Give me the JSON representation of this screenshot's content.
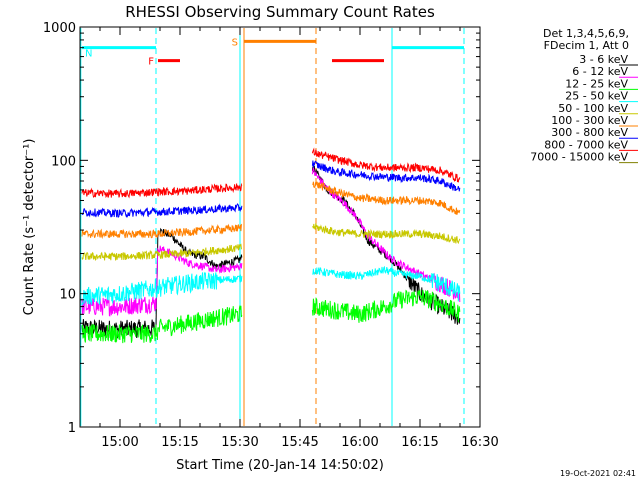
{
  "chart_data": {
    "type": "line",
    "title": "RHESSI Observing Summary Count Rates",
    "xlabel": "Start Time (20-Jan-14 14:50:02)",
    "ylabel": "Count Rate (s⁻¹ detector⁻¹)",
    "yscale": "log",
    "xlim_minutes": [
      0,
      100
    ],
    "ylim": [
      1,
      1000
    ],
    "x_ticks": [
      {
        "label": "15:00",
        "minute": 10
      },
      {
        "label": "15:15",
        "minute": 25
      },
      {
        "label": "15:30",
        "minute": 40
      },
      {
        "label": "15:45",
        "minute": 55
      },
      {
        "label": "16:00",
        "minute": 70
      },
      {
        "label": "16:15",
        "minute": 85
      },
      {
        "label": "16:30",
        "minute": 100
      }
    ],
    "y_ticks": [
      {
        "label": "1",
        "value": 1
      },
      {
        "label": "10",
        "value": 10
      },
      {
        "label": "100",
        "value": 100
      },
      {
        "label": "1000",
        "value": 1000
      }
    ],
    "legend_header": [
      "Det 1,3,4,5,6,9,",
      "FDecim 1, Att 0"
    ],
    "legend_position": "right",
    "gaps_minutes": [
      [
        40.5,
        58
      ]
    ],
    "series": [
      {
        "name": "3 - 6 keV",
        "color": "#000000",
        "points": [
          [
            0.5,
            5.5
          ],
          [
            10,
            5.4
          ],
          [
            19,
            5.5
          ],
          [
            19.5,
            30
          ],
          [
            23,
            27
          ],
          [
            27,
            20
          ],
          [
            31,
            19
          ],
          [
            34,
            16
          ],
          [
            40,
            18
          ],
          [
            58,
            90
          ],
          [
            62,
            60
          ],
          [
            66,
            50
          ],
          [
            69,
            38
          ],
          [
            72,
            25
          ],
          [
            78,
            18
          ],
          [
            85,
            10
          ],
          [
            90,
            8
          ],
          [
            95,
            6.5
          ]
        ]
      },
      {
        "name": "6 - 12 keV",
        "color": "#ff00ff",
        "points": [
          [
            0.5,
            8
          ],
          [
            10,
            8
          ],
          [
            19,
            8.5
          ],
          [
            19.5,
            22
          ],
          [
            23,
            20
          ],
          [
            27,
            17
          ],
          [
            31,
            16
          ],
          [
            34,
            15
          ],
          [
            40,
            16
          ],
          [
            58,
            85
          ],
          [
            62,
            60
          ],
          [
            66,
            48
          ],
          [
            69,
            38
          ],
          [
            72,
            27
          ],
          [
            78,
            18
          ],
          [
            85,
            14
          ],
          [
            90,
            12
          ],
          [
            95,
            10
          ]
        ]
      },
      {
        "name": "12 - 25 keV",
        "color": "#00ff00",
        "points": [
          [
            0.5,
            5
          ],
          [
            10,
            5
          ],
          [
            19,
            5
          ],
          [
            20,
            5.5
          ],
          [
            27,
            6
          ],
          [
            33,
            6.5
          ],
          [
            40,
            7
          ],
          [
            58,
            8
          ],
          [
            64,
            7.5
          ],
          [
            70,
            7
          ],
          [
            76,
            8
          ],
          [
            80,
            9
          ],
          [
            85,
            9.5
          ],
          [
            90,
            8.5
          ],
          [
            95,
            7
          ]
        ]
      },
      {
        "name": "25 - 50 keV",
        "color": "#00ffff",
        "points": [
          [
            0.5,
            9.5
          ],
          [
            10,
            10
          ],
          [
            19,
            11
          ],
          [
            27,
            12
          ],
          [
            33,
            12.5
          ],
          [
            40,
            13
          ],
          [
            58,
            15
          ],
          [
            64,
            14
          ],
          [
            70,
            13.5
          ],
          [
            76,
            15
          ],
          [
            80,
            14
          ],
          [
            85,
            13.5
          ],
          [
            90,
            12
          ],
          [
            95,
            10
          ]
        ]
      },
      {
        "name": "50 - 100 keV",
        "color": "#c8c800",
        "points": [
          [
            0.5,
            19
          ],
          [
            10,
            19
          ],
          [
            19,
            19.5
          ],
          [
            27,
            20
          ],
          [
            33,
            21
          ],
          [
            40,
            22
          ],
          [
            58,
            32
          ],
          [
            64,
            29
          ],
          [
            70,
            28
          ],
          [
            76,
            28
          ],
          [
            80,
            28
          ],
          [
            85,
            28
          ],
          [
            90,
            27
          ],
          [
            95,
            25
          ]
        ]
      },
      {
        "name": "100 - 300 keV",
        "color": "#ff8000",
        "points": [
          [
            0.5,
            28
          ],
          [
            10,
            28
          ],
          [
            19,
            28
          ],
          [
            27,
            29
          ],
          [
            33,
            30
          ],
          [
            40,
            31
          ],
          [
            58,
            68
          ],
          [
            64,
            58
          ],
          [
            70,
            52
          ],
          [
            76,
            50
          ],
          [
            80,
            50
          ],
          [
            85,
            50
          ],
          [
            90,
            48
          ],
          [
            95,
            40
          ]
        ]
      },
      {
        "name": "300 - 800 keV",
        "color": "#0000ff",
        "points": [
          [
            0.5,
            41
          ],
          [
            10,
            40
          ],
          [
            19,
            41
          ],
          [
            27,
            42
          ],
          [
            33,
            43
          ],
          [
            40,
            44
          ],
          [
            58,
            95
          ],
          [
            64,
            82
          ],
          [
            70,
            78
          ],
          [
            76,
            75
          ],
          [
            80,
            74
          ],
          [
            85,
            74
          ],
          [
            90,
            70
          ],
          [
            95,
            60
          ]
        ]
      },
      {
        "name": "800 - 7000 keV",
        "color": "#ff0000",
        "points": [
          [
            0.5,
            57
          ],
          [
            10,
            56
          ],
          [
            19,
            58
          ],
          [
            27,
            59
          ],
          [
            33,
            61
          ],
          [
            40,
            63
          ],
          [
            58,
            115
          ],
          [
            64,
            102
          ],
          [
            70,
            92
          ],
          [
            76,
            88
          ],
          [
            80,
            88
          ],
          [
            85,
            88
          ],
          [
            90,
            84
          ],
          [
            95,
            72
          ]
        ]
      },
      {
        "name": "7000 - 15000 keV",
        "color": "#808000",
        "points": []
      }
    ],
    "state_bars": [
      {
        "label": "N",
        "color": "#00ffff",
        "start": 0.5,
        "end": 19,
        "level": 700
      },
      {
        "label": "",
        "color": "#00ffff",
        "start": 78,
        "end": 96,
        "level": 700
      },
      {
        "label": "F",
        "color": "#ff0000",
        "start": 19.5,
        "end": 25,
        "level": 560
      },
      {
        "label": "",
        "color": "#ff0000",
        "start": 63,
        "end": 76,
        "level": 560
      },
      {
        "label": "S",
        "color": "#ff8000",
        "start": 41,
        "end": 59,
        "level": 780
      }
    ],
    "vertical_markers": [
      {
        "minute": 0.2,
        "color": "#00ffff",
        "style": "solid"
      },
      {
        "minute": 19,
        "color": "#00ffff",
        "style": "dashed"
      },
      {
        "minute": 40,
        "color": "#00ffff",
        "style": "solid"
      },
      {
        "minute": 41,
        "color": "#ff8000",
        "style": "solid"
      },
      {
        "minute": 59,
        "color": "#ff8000",
        "style": "dashed"
      },
      {
        "minute": 78,
        "color": "#00ffff",
        "style": "solid"
      },
      {
        "minute": 96,
        "color": "#00ffff",
        "style": "dashed"
      }
    ]
  },
  "footer_stamp": "19-Oct-2021 02:41"
}
